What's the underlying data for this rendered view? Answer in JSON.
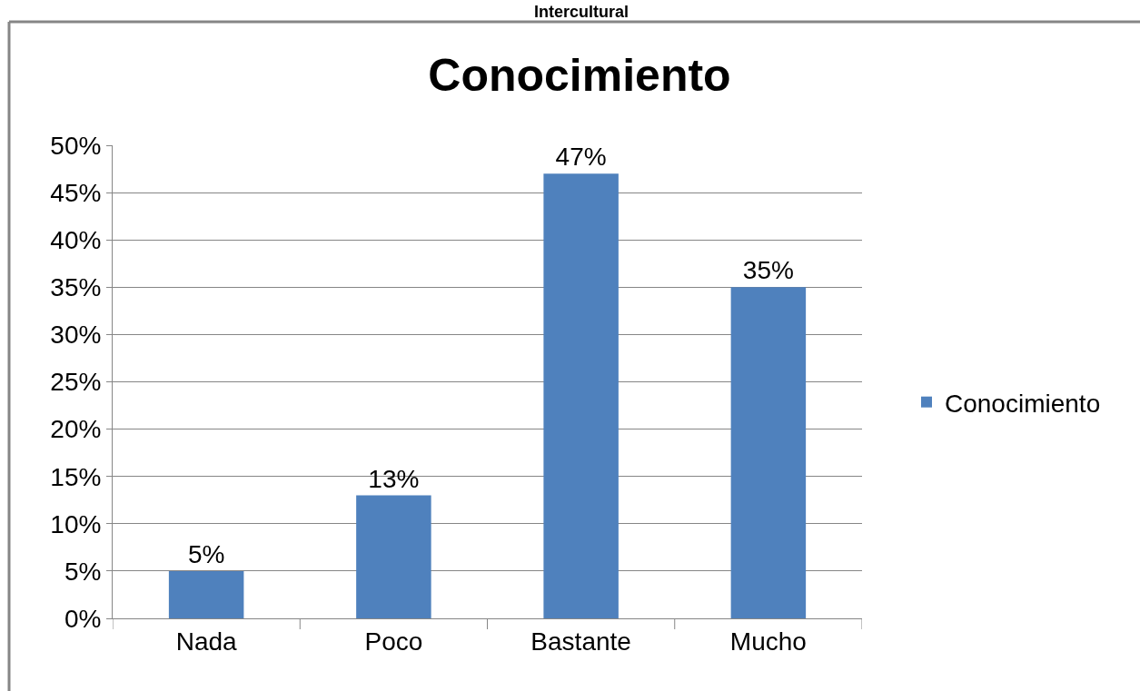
{
  "chart_data": {
    "type": "bar",
    "title": "Conocimiento",
    "annotations": [
      "Intercultural"
    ],
    "categories": [
      "Nada",
      "Poco",
      "Bastante",
      "Mucho"
    ],
    "series": [
      {
        "name": "Conocimiento",
        "color": "#4f81bd",
        "values": [
          5,
          13,
          47,
          35
        ],
        "value_labels": [
          "5%",
          "13%",
          "47%",
          "35%"
        ]
      }
    ],
    "ylim": [
      0,
      50
    ],
    "yticks": [
      {
        "value": 0,
        "label": "0%"
      },
      {
        "value": 5,
        "label": "5%"
      },
      {
        "value": 10,
        "label": "10%"
      },
      {
        "value": 15,
        "label": "15%"
      },
      {
        "value": 20,
        "label": "20%"
      },
      {
        "value": 25,
        "label": "25%"
      },
      {
        "value": 30,
        "label": "30%"
      },
      {
        "value": 35,
        "label": "35%"
      },
      {
        "value": 40,
        "label": "40%"
      },
      {
        "value": 45,
        "label": "45%"
      },
      {
        "value": 50,
        "label": "50%"
      }
    ],
    "grid": "y",
    "legend": "right"
  }
}
